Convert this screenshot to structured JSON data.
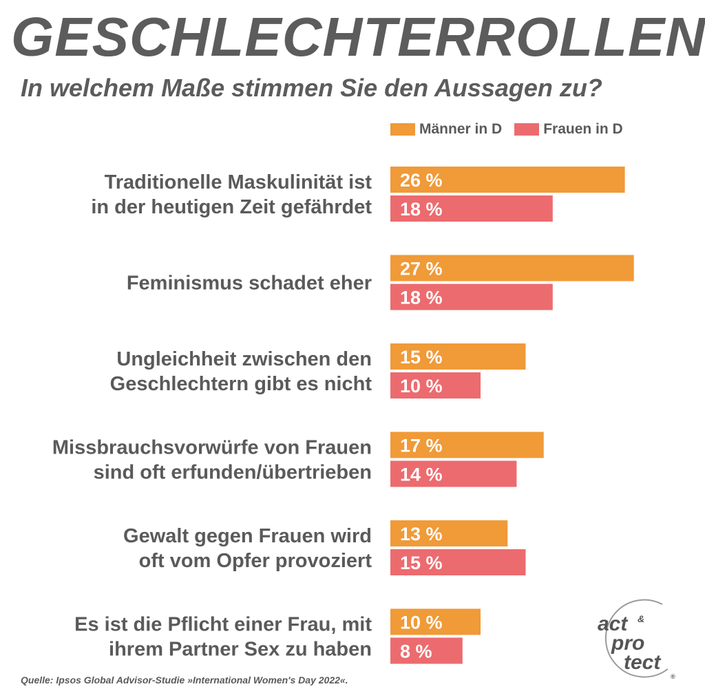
{
  "header": {
    "title": "GESCHLECHTERROLLEN",
    "subtitle": "In welchem Maße stimmen Sie den Aussagen zu?"
  },
  "colors": {
    "maenner": "#f09a38",
    "frauen": "#ec6b6f",
    "label_text": "#5a5a5a",
    "value_text": "#ffffff"
  },
  "chart_data": {
    "type": "bar",
    "orientation": "horizontal",
    "title": "GESCHLECHTERROLLEN",
    "subtitle": "In welchem Maße stimmen Sie den Aussagen zu?",
    "xlabel": "",
    "ylabel": "",
    "value_suffix": " %",
    "xlim": [
      0,
      30
    ],
    "legend_position": "top-right",
    "categories": [
      "Traditionelle Maskulinität ist\nin der heutigen Zeit gefährdet",
      "Feminismus schadet eher",
      "Ungleichheit zwischen den\nGeschlechtern gibt es nicht",
      "Missbrauchsvorwürfe von Frauen\nsind oft erfunden/übertrieben",
      "Gewalt gegen Frauen wird\noft vom Opfer provoziert",
      "Es ist die Pflicht einer Frau, mit\nihrem Partner Sex zu haben"
    ],
    "series": [
      {
        "name": "Männer in D",
        "values": [
          26,
          27,
          15,
          17,
          13,
          10
        ]
      },
      {
        "name": "Frauen in D",
        "values": [
          18,
          18,
          10,
          14,
          15,
          8
        ]
      }
    ]
  },
  "source": "Quelle: Ipsos Global Advisor-Studie »International Women's Day 2022«.",
  "logo": {
    "line1": "act",
    "amp": "&",
    "line2": "pro",
    "line3": "tect",
    "mark": "®"
  }
}
